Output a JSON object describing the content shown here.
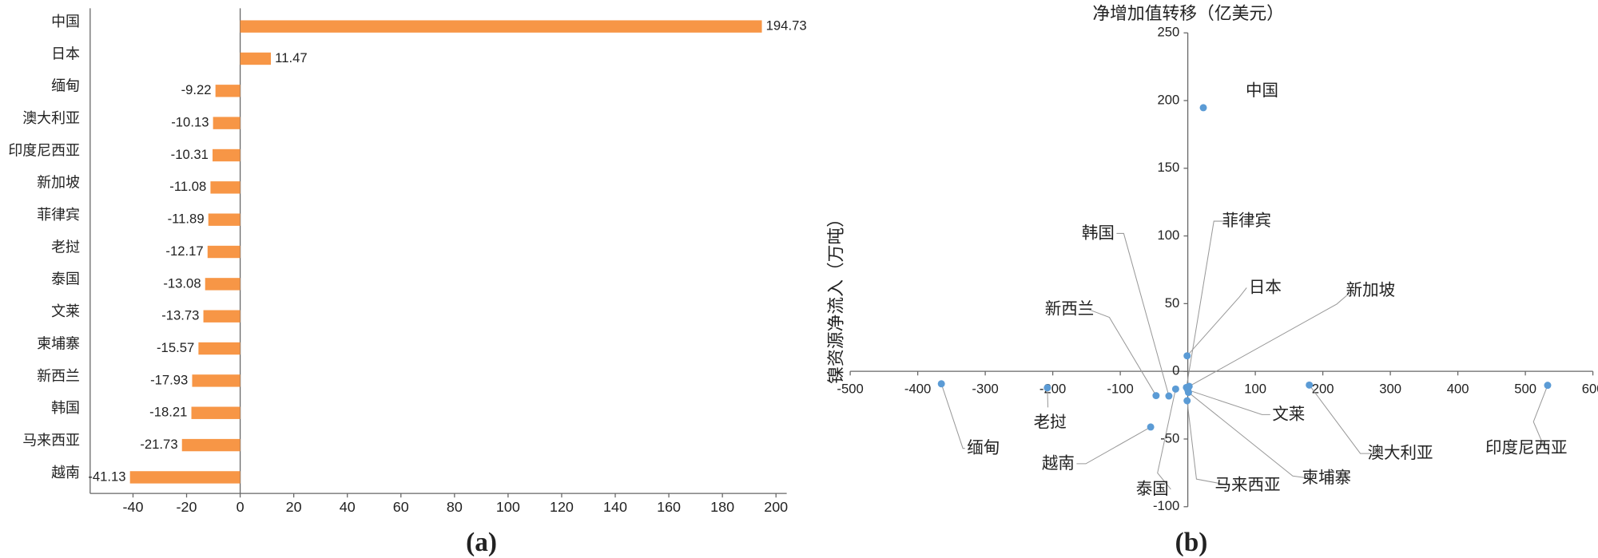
{
  "chart_data": [
    {
      "type": "bar",
      "orientation": "horizontal",
      "panel_label": "(a)",
      "categories": [
        "中国",
        "日本",
        "缅甸",
        "澳大利亚",
        "印度尼西亚",
        "新加坡",
        "菲律宾",
        "老挝",
        "泰国",
        "文莱",
        "柬埔寨",
        "新西兰",
        "韩国",
        "马来西亚",
        "越南"
      ],
      "values": [
        194.73,
        11.47,
        -9.22,
        -10.13,
        -10.31,
        -11.08,
        -11.89,
        -12.17,
        -13.08,
        -13.73,
        -15.57,
        -17.93,
        -18.21,
        -21.73,
        -41.13
      ],
      "color": "#f79646",
      "xlim": [
        -56,
        204
      ],
      "xticks": [
        -40,
        -20,
        0,
        20,
        40,
        60,
        80,
        100,
        120,
        140,
        160,
        180,
        200
      ]
    },
    {
      "type": "scatter",
      "panel_label": "(b)",
      "x_label": "镍资源净流入（万吨）",
      "y_label": "净增加值转移（亿美元）",
      "labels": [
        "中国",
        "日本",
        "缅甸",
        "澳大利亚",
        "印度尼西亚",
        "新加坡",
        "菲律宾",
        "老挝",
        "泰国",
        "文莱",
        "柬埔寨",
        "新西兰",
        "韩国",
        "马来西亚",
        "越南"
      ],
      "x": [
        23,
        -1,
        -365,
        180,
        533,
        2,
        -2,
        -208,
        -18,
        0,
        1,
        -47,
        -28,
        -1,
        -55
      ],
      "y": [
        194.73,
        11.47,
        -9.22,
        -10.13,
        -10.31,
        -11.08,
        -11.89,
        -12.17,
        -13.08,
        -13.73,
        -15.57,
        -17.93,
        -18.21,
        -21.73,
        -41.13
      ],
      "color": "#5b9bd5",
      "xlim": [
        -500,
        600
      ],
      "xticks": [
        -500,
        -400,
        -300,
        -200,
        -100,
        0,
        100,
        200,
        300,
        400,
        500,
        600
      ],
      "ylim": [
        -100,
        250
      ],
      "yticks": [
        -100,
        -50,
        0,
        50,
        100,
        150,
        200,
        250
      ]
    }
  ]
}
